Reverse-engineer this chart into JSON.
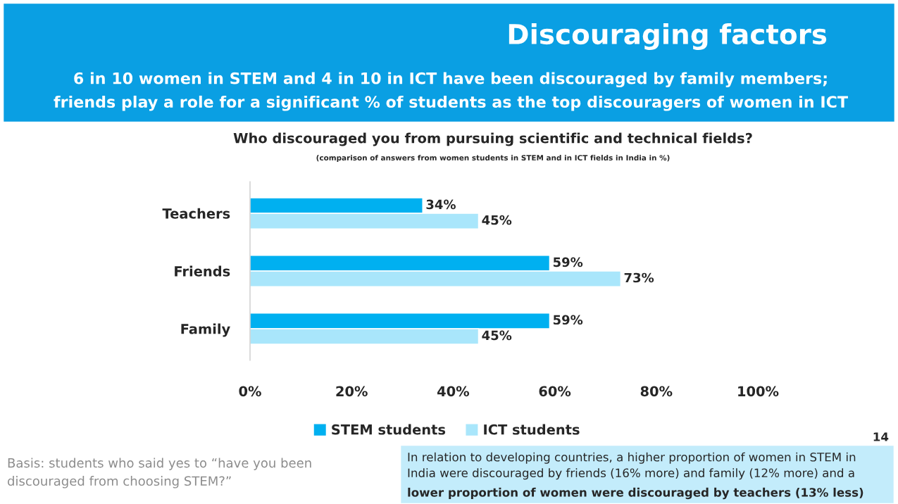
{
  "chart_data": {
    "type": "bar",
    "orientation": "horizontal",
    "title": "Discouraging factors",
    "subtitle": "6 in 10 women in STEM and 4 in 10 in ICT have been discouraged by family members;\nfriends play a role for a significant % of students as the top discouragers of women in ICT",
    "annotations": [
      "Who discouraged you from pursuing scientific and technical fields?",
      "(comparison of answers from women students in STEM and in ICT fields in India in %)",
      "Basis: students who said yes to “have you been\ndiscouraged from choosing STEM?”",
      "14",
      "In relation to developing countries, a higher proportion of women in STEM in\nIndia were discouraged by friends (16% more) and family (12% more) and a",
      "lower proportion of women were discouraged by teachers (13% less)"
    ],
    "categories": [
      "Teachers",
      "Friends",
      "Family"
    ],
    "series": [
      {
        "name": "STEM students",
        "color": "#00b0f0",
        "values": [
          34,
          59,
          59
        ],
        "value_labels": [
          "34%",
          "59%",
          "59%"
        ]
      },
      {
        "name": "ICT students",
        "color": "#a9e6fb",
        "values": [
          45,
          73,
          45
        ],
        "value_labels": [
          "45%",
          "73%",
          "45%"
        ]
      }
    ],
    "xlim": [
      0,
      100
    ],
    "xticks": [
      {
        "value": 0,
        "label": "0%"
      },
      {
        "value": 20,
        "label": "20%"
      },
      {
        "value": 40,
        "label": "40%"
      },
      {
        "value": 60,
        "label": "60%"
      },
      {
        "value": 80,
        "label": "80%"
      },
      {
        "value": 100,
        "label": "100%"
      }
    ],
    "legend": "bottom",
    "grid": false
  }
}
